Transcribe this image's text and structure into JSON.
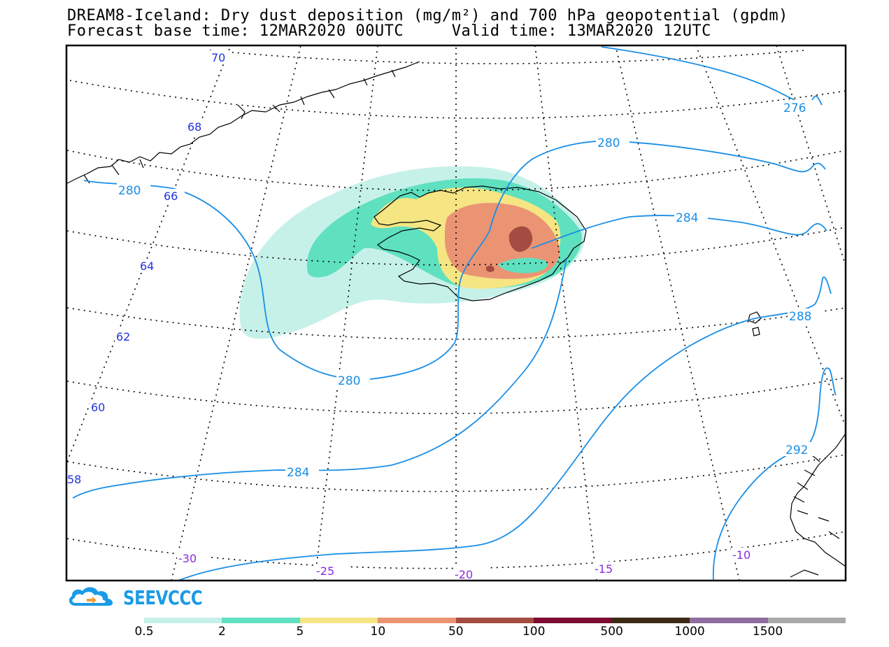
{
  "title": {
    "line1": "DREAM8-Iceland: Dry dust deposition (mg/m²) and 700 hPa geopotential (gpdm)",
    "line2": "Forecast base time: 12MAR2020 00UTC     Valid time: 13MAR2020 12UTC"
  },
  "map": {
    "latitude_labels": [
      "70",
      "68",
      "66",
      "64",
      "62",
      "60",
      "58"
    ],
    "longitude_labels": [
      "-30",
      "-25",
      "-20",
      "-15",
      "-10"
    ],
    "geopotential_labels": [
      "276",
      "280",
      "280",
      "280",
      "284",
      "284",
      "288",
      "292"
    ],
    "colors": {
      "geopotential_contour": "#1a8fe6",
      "coastline": "#000000",
      "graticule": "#000000"
    }
  },
  "logo": {
    "text": "SEEVCCC",
    "icon": "cloud-logo-icon",
    "color": "#1a9be6"
  },
  "legend": {
    "colors": [
      "#c6f1e9",
      "#5fe0bf",
      "#f5e583",
      "#eb9474",
      "#a54c42",
      "#7e0b32",
      "#3b2b16",
      "#8e6da0",
      "#a9a9a9"
    ],
    "ticks": [
      "0.5",
      "2",
      "5",
      "10",
      "50",
      "100",
      "500",
      "1000",
      "1500"
    ]
  }
}
